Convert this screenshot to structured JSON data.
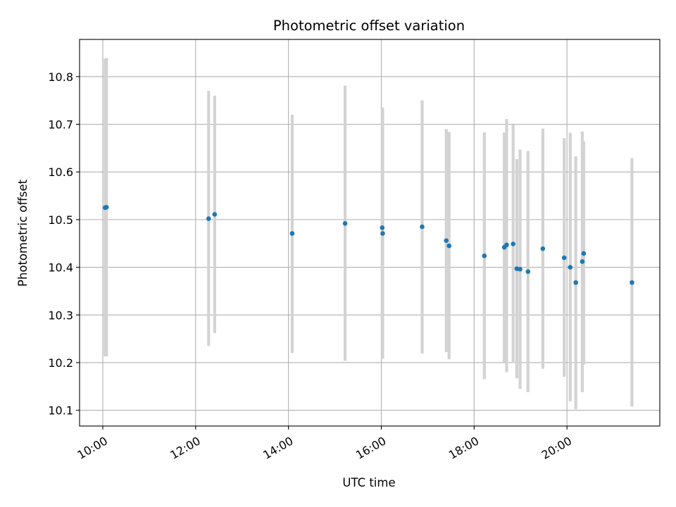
{
  "chart_data": {
    "type": "scatter",
    "title": "Photometric offset variation",
    "xlabel": "UTC time",
    "ylabel": "Photometric offset",
    "x_ticks": [
      "10:00",
      "12:00",
      "14:00",
      "16:00",
      "18:00",
      "20:00"
    ],
    "y_ticks": [
      "10.1",
      "10.2",
      "10.3",
      "10.4",
      "10.5",
      "10.6",
      "10.7",
      "10.8"
    ],
    "x_unit": "hours UTC",
    "xlim": [
      9.5,
      22.0
    ],
    "ylim": [
      10.067,
      10.878
    ],
    "grid": true,
    "marker_color": "#1f77b4",
    "errorbar_color": "#d3d3d3",
    "series": [
      {
        "points": [
          {
            "x": 10.05,
            "y": 10.525,
            "lo": 10.213,
            "hi": 10.837
          },
          {
            "x": 10.08,
            "y": 10.526,
            "lo": 10.213,
            "hi": 10.839
          },
          {
            "x": 12.28,
            "y": 10.502,
            "lo": 10.235,
            "hi": 10.77
          },
          {
            "x": 12.41,
            "y": 10.511,
            "lo": 10.262,
            "hi": 10.76
          },
          {
            "x": 14.08,
            "y": 10.471,
            "lo": 10.22,
            "hi": 10.72
          },
          {
            "x": 15.22,
            "y": 10.492,
            "lo": 10.204,
            "hi": 10.781
          },
          {
            "x": 16.02,
            "y": 10.483,
            "lo": 10.226,
            "hi": 10.735
          },
          {
            "x": 16.03,
            "y": 10.471,
            "lo": 10.208,
            "hi": 10.733
          },
          {
            "x": 16.88,
            "y": 10.485,
            "lo": 10.219,
            "hi": 10.75
          },
          {
            "x": 17.4,
            "y": 10.456,
            "lo": 10.222,
            "hi": 10.69
          },
          {
            "x": 17.46,
            "y": 10.445,
            "lo": 10.207,
            "hi": 10.684
          },
          {
            "x": 18.22,
            "y": 10.424,
            "lo": 10.165,
            "hi": 10.683
          },
          {
            "x": 18.65,
            "y": 10.442,
            "lo": 10.201,
            "hi": 10.683
          },
          {
            "x": 18.7,
            "y": 10.447,
            "lo": 10.18,
            "hi": 10.711
          },
          {
            "x": 18.84,
            "y": 10.449,
            "lo": 10.199,
            "hi": 10.699
          },
          {
            "x": 18.92,
            "y": 10.397,
            "lo": 10.167,
            "hi": 10.627
          },
          {
            "x": 18.99,
            "y": 10.396,
            "lo": 10.145,
            "hi": 10.647
          },
          {
            "x": 19.16,
            "y": 10.391,
            "lo": 10.138,
            "hi": 10.644
          },
          {
            "x": 19.48,
            "y": 10.439,
            "lo": 10.187,
            "hi": 10.691
          },
          {
            "x": 19.94,
            "y": 10.42,
            "lo": 10.17,
            "hi": 10.671
          },
          {
            "x": 20.07,
            "y": 10.4,
            "lo": 10.119,
            "hi": 10.682
          },
          {
            "x": 20.19,
            "y": 10.368,
            "lo": 10.102,
            "hi": 10.633
          },
          {
            "x": 20.33,
            "y": 10.412,
            "lo": 10.138,
            "hi": 10.685
          },
          {
            "x": 20.36,
            "y": 10.429,
            "lo": 10.196,
            "hi": 10.664
          },
          {
            "x": 21.4,
            "y": 10.368,
            "lo": 10.108,
            "hi": 10.629
          }
        ]
      }
    ]
  }
}
